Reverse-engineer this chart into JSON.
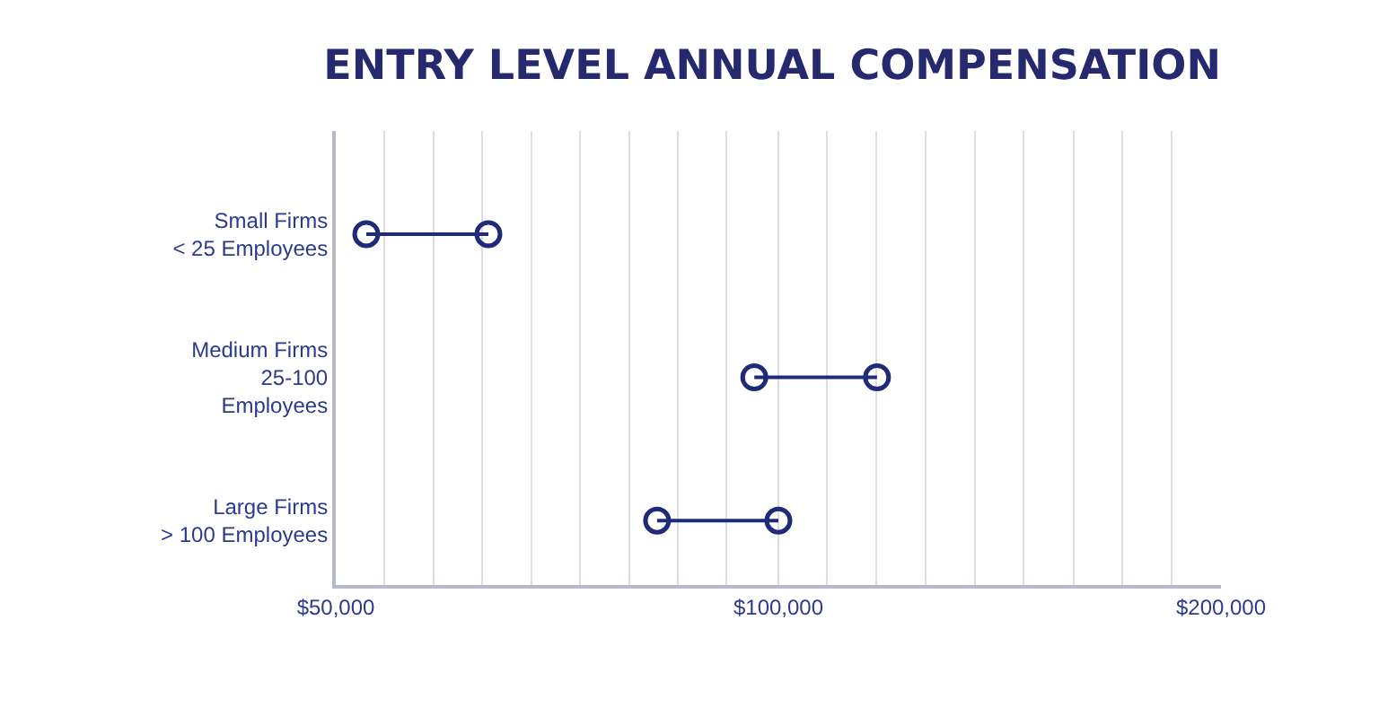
{
  "chart_data": {
    "type": "scatter",
    "title": "ENTRY LEVEL ANNUAL COMPENSATION",
    "categories": [
      "Small Firms\n< 25 Employees",
      "Medium Firms\n25-100\nEmployees",
      "Large Firms\n> 100 Employees"
    ],
    "series": [
      {
        "color": "#1f2a78",
        "values": [
          52450,
          96300,
          82700
        ]
      },
      {
        "color": "#1f2a78",
        "values": [
          63500,
          116700,
          100000
        ]
      }
    ],
    "log": "x",
    "xlim": [
      50000,
      200000
    ],
    "xticks": [
      {
        "value": 50000,
        "label": "$50,000"
      },
      {
        "value": 53970,
        "label": null
      },
      {
        "value": 58270,
        "label": null
      },
      {
        "value": 62900,
        "label": null
      },
      {
        "value": 67900,
        "label": null
      },
      {
        "value": 73300,
        "label": null
      },
      {
        "value": 79130,
        "label": null
      },
      {
        "value": 85420,
        "label": null
      },
      {
        "value": 92210,
        "label": null
      },
      {
        "value": 100000,
        "label": "$100,000"
      },
      {
        "value": 107950,
        "label": null
      },
      {
        "value": 116530,
        "label": null
      },
      {
        "value": 125990,
        "label": null
      },
      {
        "value": 136010,
        "label": null
      },
      {
        "value": 146830,
        "label": null
      },
      {
        "value": 158740,
        "label": null
      },
      {
        "value": 171370,
        "label": null
      },
      {
        "value": 185000,
        "label": null
      },
      {
        "value": 200000,
        "label": "$200,000"
      }
    ],
    "orientation": "horizontal",
    "grid": "x",
    "marker": "circle",
    "line_style": "solid"
  }
}
